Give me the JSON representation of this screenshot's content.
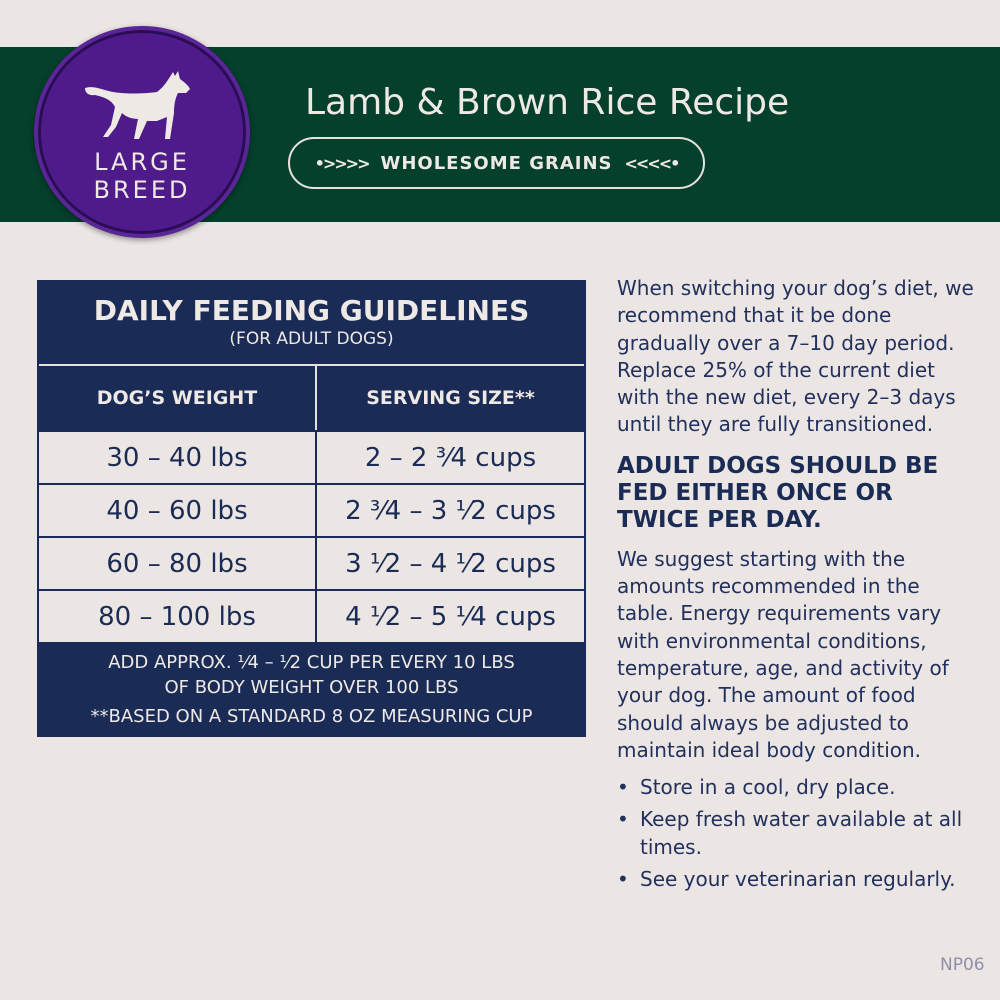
{
  "header": {
    "badge_line1": "LARGE",
    "badge_line2": "BREED",
    "title": "Lamb & Brown Rice Recipe",
    "pill": "WHOLESOME GRAINS",
    "colors": {
      "band": "#04402c",
      "badge": "#4f1a8a",
      "navy": "#1a2b55"
    }
  },
  "table": {
    "title": "DAILY FEEDING GUIDELINES",
    "subtitle": "(FOR ADULT DOGS)",
    "columns": [
      "DOG’S WEIGHT",
      "SERVING SIZE**"
    ],
    "rows": [
      [
        "30 – 40 lbs",
        "2 – 2 ³⁄4 cups"
      ],
      [
        "40 – 60 lbs",
        "2 ³⁄4 – 3 ¹⁄2 cups"
      ],
      [
        "60 – 80 lbs",
        "3 ¹⁄2 – 4 ¹⁄2 cups"
      ],
      [
        "80 – 100 lbs",
        "4 ¹⁄2 – 5 ¹⁄4 cups"
      ]
    ],
    "footer1": "ADD APPROX. ¹⁄4 – ¹⁄2 CUP PER EVERY 10 LBS",
    "footer2": "OF BODY WEIGHT OVER 100 LBS",
    "footer3": "**BASED ON A STANDARD 8 OZ MEASURING CUP"
  },
  "info": {
    "intro": "When switching your dog’s diet, we recommend that it be done gradually over a 7–10 day period. Replace 25% of the current diet with the new diet, every 2–3 days until they are fully transitioned.",
    "heading": "ADULT DOGS SHOULD BE FED EITHER ONCE OR TWICE PER DAY.",
    "body": "We suggest starting with the amounts recommended in the table. Energy requirements vary with environmental conditions, temperature, age, and activity of your dog. The amount of food should always be adjusted to maintain ideal body condition.",
    "bullets": [
      "Store in a cool, dry place.",
      "Keep fresh water available at all times.",
      "See your veterinarian regularly."
    ]
  },
  "code": "NP06"
}
